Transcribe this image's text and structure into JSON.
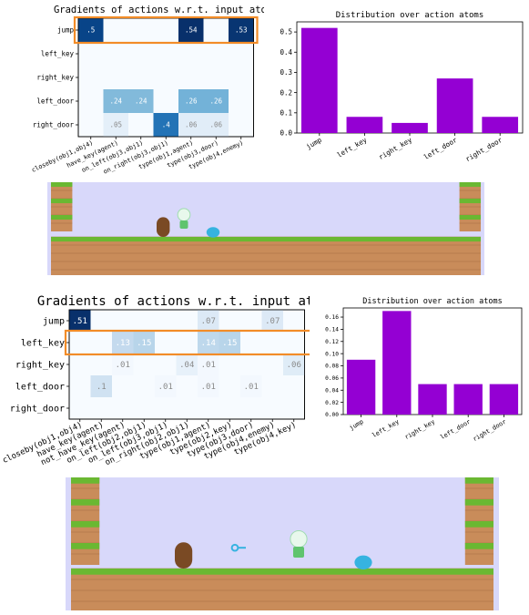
{
  "chart_data": [
    {
      "type": "heatmap",
      "title": "Gradients of actions w.r.t. input atoms",
      "rows": [
        "jump",
        "left_key",
        "right_key",
        "left_door",
        "right_door"
      ],
      "cols": [
        "closeby(obj1,obj4)",
        "have_key(agent)",
        "on_left(obj3,obj1)",
        "on_right(obj3,obj1)",
        "type(obj1,agent)",
        "type(obj3,door)",
        "type(obj4,enemy)"
      ],
      "cells": [
        {
          "row": 0,
          "col": 0,
          "value": 0.5,
          "label": ".5"
        },
        {
          "row": 0,
          "col": 4,
          "value": 0.54,
          "label": ".54"
        },
        {
          "row": 0,
          "col": 6,
          "value": 0.53,
          "label": ".53"
        },
        {
          "row": 3,
          "col": 1,
          "value": 0.24,
          "label": ".24"
        },
        {
          "row": 3,
          "col": 2,
          "value": 0.24,
          "label": ".24"
        },
        {
          "row": 3,
          "col": 4,
          "value": 0.26,
          "label": ".26"
        },
        {
          "row": 3,
          "col": 5,
          "value": 0.26,
          "label": ".26"
        },
        {
          "row": 4,
          "col": 1,
          "value": 0.05,
          "label": ".05"
        },
        {
          "row": 4,
          "col": 3,
          "value": 0.4,
          "label": ".4"
        },
        {
          "row": 4,
          "col": 4,
          "value": 0.06,
          "label": ".06"
        },
        {
          "row": 4,
          "col": 5,
          "value": 0.06,
          "label": ".06"
        }
      ],
      "highlight_row": 0,
      "highlight_color": "#f28c28"
    },
    {
      "type": "bar",
      "title": "Distribution over action atoms",
      "categories": [
        "jump",
        "left_key",
        "right_key",
        "left_door",
        "right_door"
      ],
      "values": [
        0.52,
        0.08,
        0.05,
        0.27,
        0.08
      ],
      "ylim": [
        0,
        0.55
      ],
      "yticks": [
        "0.0",
        "0.1",
        "0.2",
        "0.3",
        "0.4",
        "0.5"
      ],
      "bar_color": "#9400d3"
    },
    {
      "type": "heatmap",
      "title": "Gradients of actions w.r.t. input atoms",
      "rows": [
        "jump",
        "left_key",
        "right_key",
        "left_door",
        "right_door"
      ],
      "cols": [
        "closeby(obj1,obj4)",
        "have_key(agent)",
        "not_have_key(agent)",
        "on_left(obj2,obj1)",
        "on_left(obj3,obj1)",
        "on_right(obj2,obj1)",
        "type(obj1,agent)",
        "type(obj2,key)",
        "type(obj3,door)",
        "type(obj4,enemy)",
        "type(obj4,key)"
      ],
      "cells": [
        {
          "row": 0,
          "col": 0,
          "value": 0.51,
          "label": ".51"
        },
        {
          "row": 0,
          "col": 6,
          "value": 0.07,
          "label": ".07"
        },
        {
          "row": 0,
          "col": 9,
          "value": 0.07,
          "label": ".07"
        },
        {
          "row": 1,
          "col": 2,
          "value": 0.13,
          "label": ".13"
        },
        {
          "row": 1,
          "col": 3,
          "value": 0.15,
          "label": ".15"
        },
        {
          "row": 1,
          "col": 6,
          "value": 0.14,
          "label": ".14"
        },
        {
          "row": 1,
          "col": 7,
          "value": 0.15,
          "label": ".15"
        },
        {
          "row": 2,
          "col": 2,
          "value": 0.01,
          "label": ".01"
        },
        {
          "row": 2,
          "col": 5,
          "value": 0.04,
          "label": ".04"
        },
        {
          "row": 2,
          "col": 6,
          "value": 0.01,
          "label": ".01"
        },
        {
          "row": 2,
          "col": 10,
          "value": 0.06,
          "label": ".06"
        },
        {
          "row": 3,
          "col": 1,
          "value": 0.1,
          "label": ".1"
        },
        {
          "row": 3,
          "col": 4,
          "value": 0.01,
          "label": ".01"
        },
        {
          "row": 3,
          "col": 6,
          "value": 0.01,
          "label": ".01"
        },
        {
          "row": 3,
          "col": 8,
          "value": 0.01,
          "label": ".01"
        }
      ],
      "highlight_row": 1,
      "highlight_color": "#f28c28"
    },
    {
      "type": "bar",
      "title": "Distribution over action atoms",
      "categories": [
        "jump",
        "left_key",
        "right_key",
        "left_door",
        "right_door"
      ],
      "values": [
        0.09,
        0.17,
        0.05,
        0.05,
        0.05
      ],
      "ylim": [
        0,
        0.175
      ],
      "yticks": [
        "0.00",
        "0.02",
        "0.04",
        "0.06",
        "0.08",
        "0.10",
        "0.12",
        "0.14",
        "0.16"
      ],
      "bar_color": "#9400d3"
    }
  ],
  "game_scenes": [
    {
      "items": [
        "door",
        "agent",
        "enemy"
      ]
    },
    {
      "items": [
        "door",
        "key",
        "agent",
        "enemy"
      ]
    }
  ],
  "colors": {
    "scene_bg": "#d8d8fa",
    "grass": "#6ab832",
    "dirt": "#c98c5a",
    "key": "#36b3e0"
  }
}
